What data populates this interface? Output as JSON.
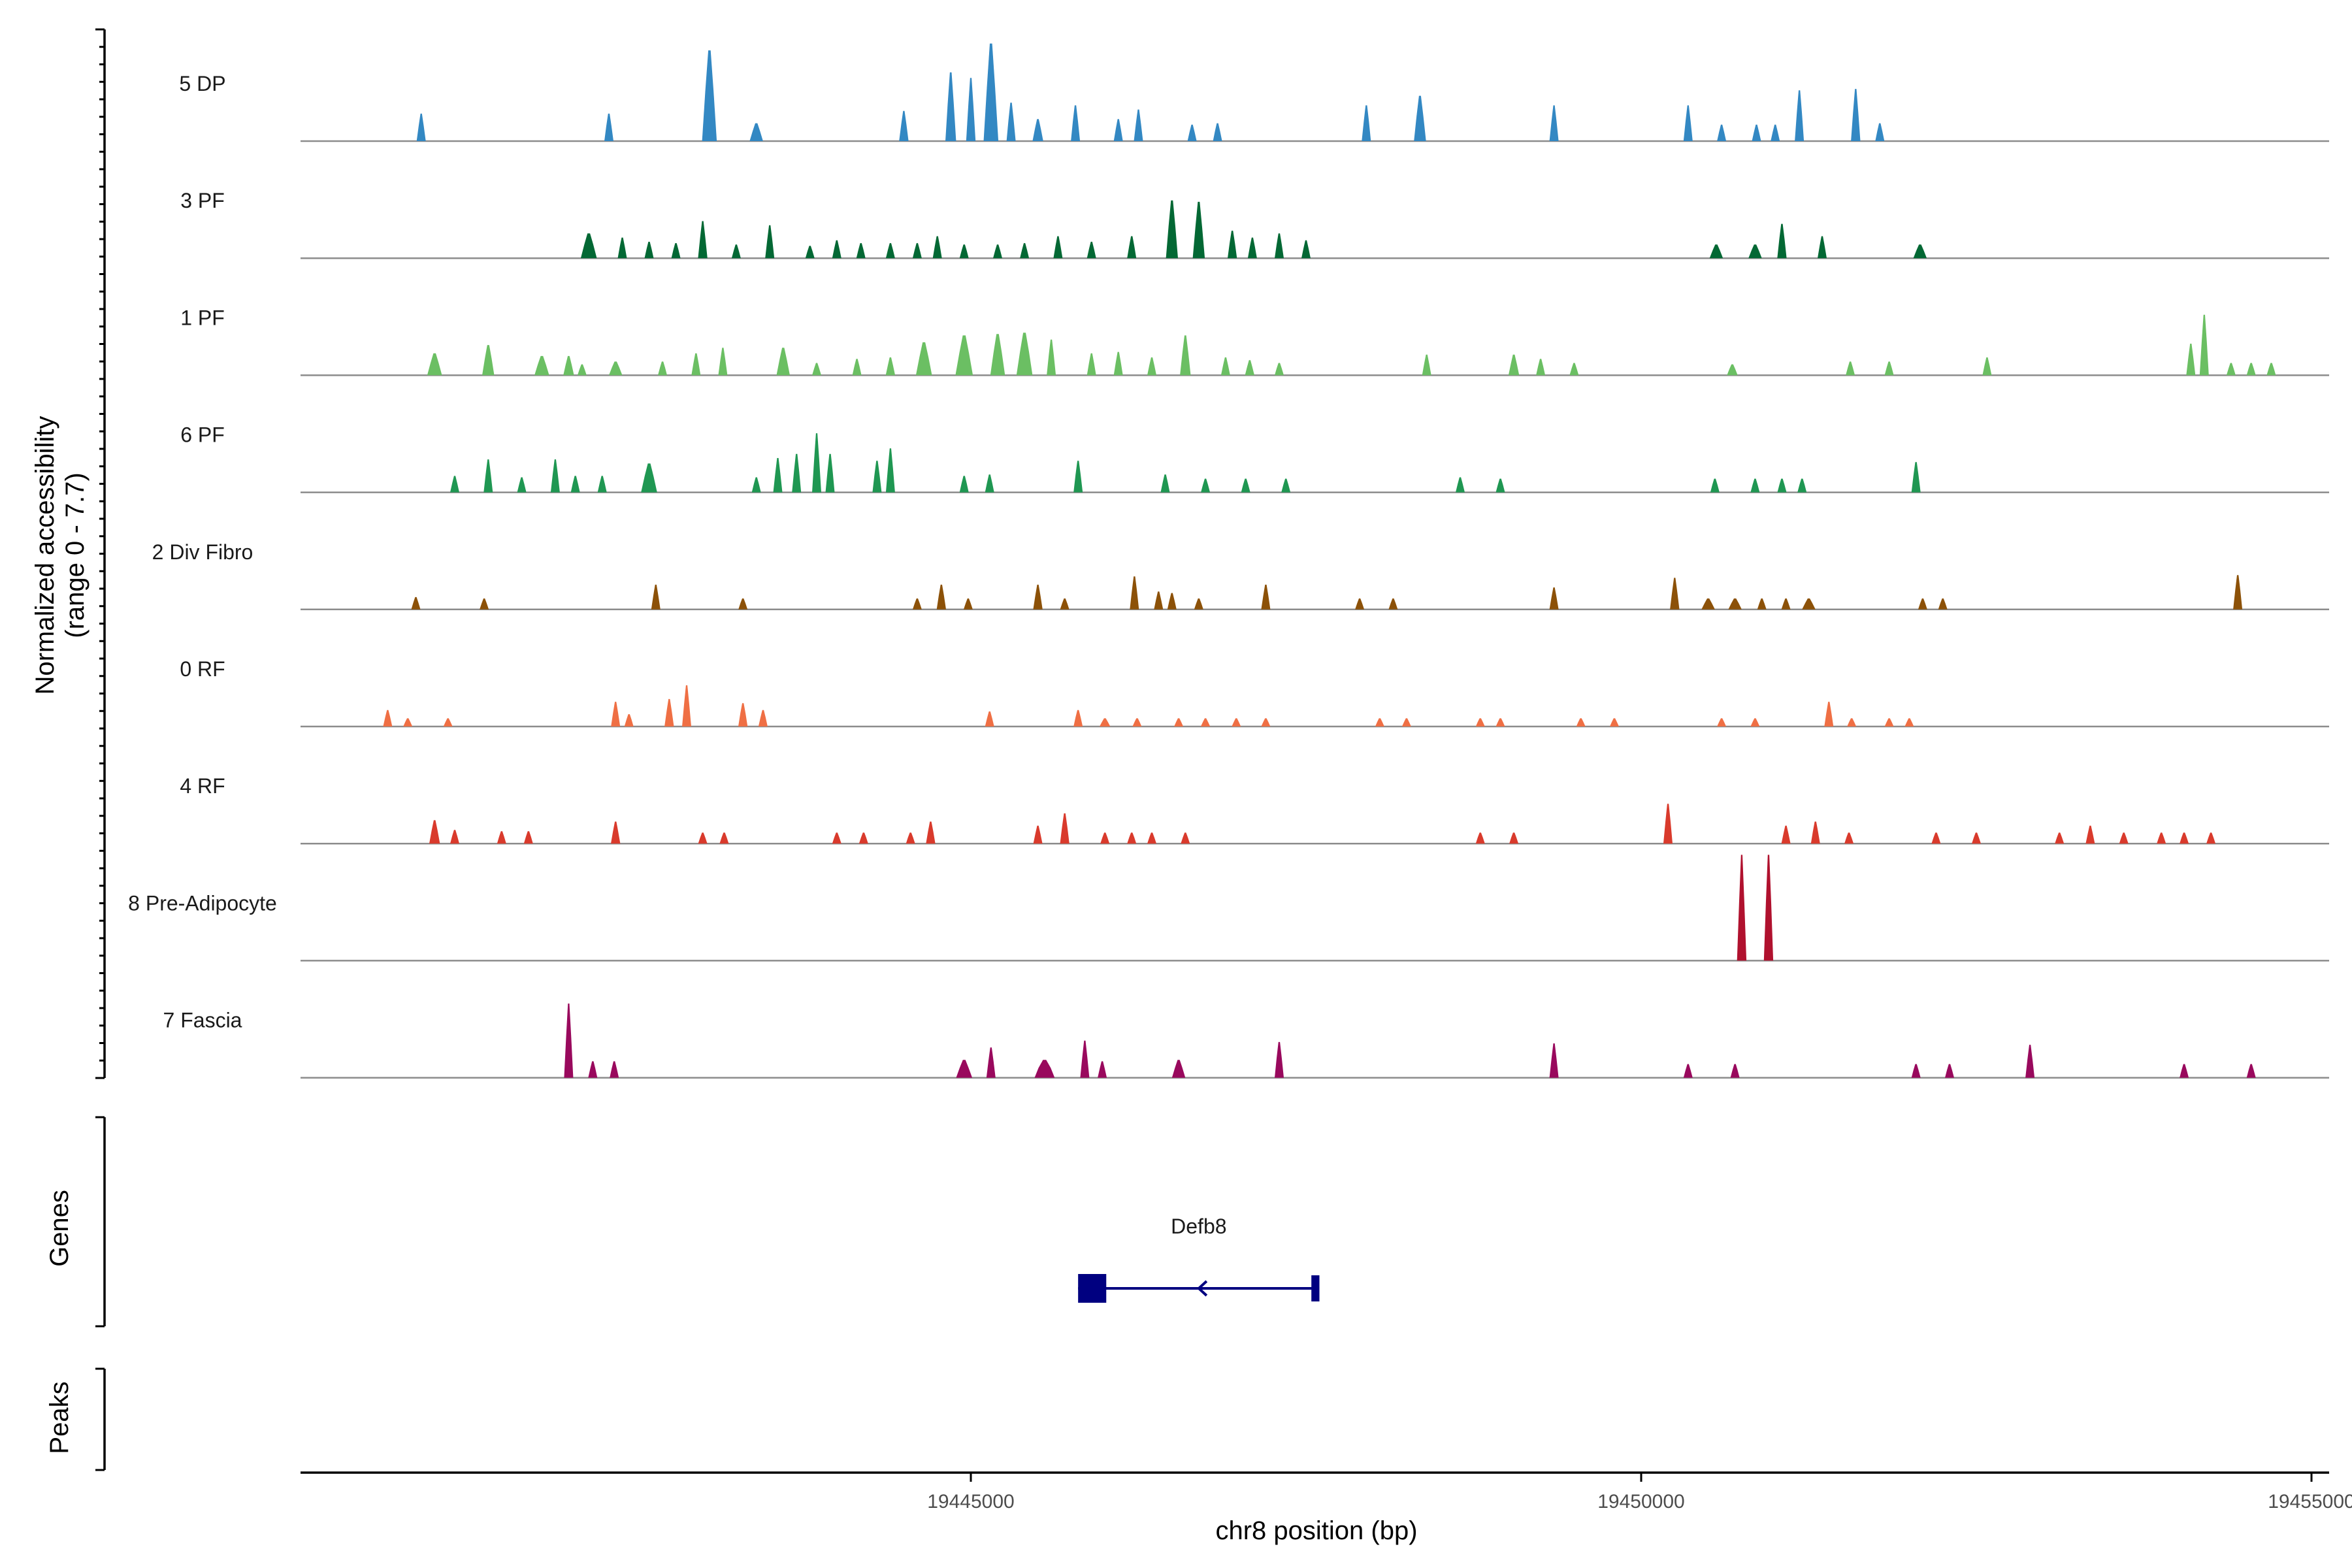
{
  "chart_data": {
    "type": "area",
    "title": "",
    "ylabel_line1": "Normalized accessibility",
    "ylabel_line2": "(range 0 - 7.7)",
    "y_range": [
      0,
      7.7
    ],
    "xlabel": "chr8 position (bp)",
    "x_range": [
      19440000,
      19455250
    ],
    "x_ticks": [
      {
        "value": 19445000,
        "label": "19445000"
      },
      {
        "value": 19450000,
        "label": "19450000"
      },
      {
        "value": 19455000,
        "label": "19455000"
      }
    ],
    "genes_label": "Genes",
    "peaks_label": "Peaks",
    "genes": [
      {
        "name": "Defb8",
        "start": 19445800,
        "end": 19447600,
        "strand": "-",
        "exons": [
          [
            19445800,
            19446010
          ],
          [
            19447540,
            19447600
          ]
        ]
      }
    ],
    "tracks": [
      {
        "name": "5 DP",
        "color": "#3388c3",
        "peaks": [
          [
            19440900,
            50,
            2.0
          ],
          [
            19442300,
            60,
            2.0
          ],
          [
            19443050,
            110,
            6.6
          ],
          [
            19443400,
            100,
            1.3
          ],
          [
            19444500,
            70,
            2.2
          ],
          [
            19444850,
            80,
            5.0
          ],
          [
            19445000,
            70,
            4.6
          ],
          [
            19445150,
            110,
            7.1
          ],
          [
            19445300,
            60,
            2.8
          ],
          [
            19445500,
            80,
            1.6
          ],
          [
            19445780,
            60,
            2.6
          ],
          [
            19446100,
            60,
            1.6
          ],
          [
            19446250,
            60,
            2.3
          ],
          [
            19446650,
            50,
            1.2
          ],
          [
            19446840,
            60,
            1.3
          ],
          [
            19447950,
            60,
            2.6
          ],
          [
            19448350,
            90,
            3.3
          ],
          [
            19449350,
            60,
            2.6
          ],
          [
            19450350,
            50,
            2.6
          ],
          [
            19450600,
            40,
            1.2
          ],
          [
            19450860,
            40,
            1.2
          ],
          [
            19451000,
            40,
            1.2
          ],
          [
            19451180,
            60,
            3.7
          ],
          [
            19451600,
            70,
            3.8
          ],
          [
            19451780,
            60,
            1.3
          ]
        ]
      },
      {
        "name": "3 PF",
        "color": "#036834",
        "peaks": [
          [
            19442150,
            120,
            1.8
          ],
          [
            19442400,
            40,
            1.5
          ],
          [
            19442600,
            40,
            1.2
          ],
          [
            19442800,
            50,
            1.1
          ],
          [
            19443000,
            70,
            2.7
          ],
          [
            19443250,
            50,
            1.0
          ],
          [
            19443500,
            50,
            2.4
          ],
          [
            19443800,
            40,
            0.9
          ],
          [
            19444000,
            50,
            1.3
          ],
          [
            19444180,
            40,
            1.1
          ],
          [
            19444400,
            40,
            1.1
          ],
          [
            19444600,
            40,
            1.1
          ],
          [
            19444750,
            50,
            1.6
          ],
          [
            19444950,
            40,
            1.0
          ],
          [
            19445200,
            40,
            1.0
          ],
          [
            19445400,
            50,
            1.1
          ],
          [
            19445650,
            60,
            1.6
          ],
          [
            19445900,
            40,
            1.2
          ],
          [
            19446200,
            60,
            1.6
          ],
          [
            19446500,
            90,
            4.2
          ],
          [
            19446700,
            90,
            4.1
          ],
          [
            19446950,
            70,
            2.0
          ],
          [
            19447100,
            60,
            1.5
          ],
          [
            19447300,
            60,
            1.8
          ],
          [
            19447500,
            40,
            1.3
          ],
          [
            19450560,
            100,
            1.0
          ],
          [
            19450850,
            100,
            1.0
          ],
          [
            19451050,
            70,
            2.5
          ],
          [
            19451350,
            50,
            1.6
          ],
          [
            19452080,
            100,
            1.0
          ]
        ]
      },
      {
        "name": "1 PF",
        "color": "#6bbf63",
        "peaks": [
          [
            19441000,
            110,
            1.6
          ],
          [
            19441400,
            90,
            2.2
          ],
          [
            19441800,
            110,
            1.4
          ],
          [
            19442000,
            80,
            1.4
          ],
          [
            19442100,
            40,
            0.8
          ],
          [
            19442350,
            100,
            1.0
          ],
          [
            19442700,
            40,
            1.0
          ],
          [
            19442950,
            50,
            1.6
          ],
          [
            19443150,
            60,
            2.0
          ],
          [
            19443600,
            100,
            2.0
          ],
          [
            19443850,
            40,
            0.9
          ],
          [
            19444150,
            50,
            1.2
          ],
          [
            19444400,
            70,
            1.3
          ],
          [
            19444650,
            120,
            2.4
          ],
          [
            19444950,
            130,
            2.9
          ],
          [
            19445200,
            110,
            3.0
          ],
          [
            19445400,
            120,
            3.1
          ],
          [
            19445600,
            50,
            2.6
          ],
          [
            19445900,
            60,
            1.6
          ],
          [
            19446100,
            60,
            1.7
          ],
          [
            19446350,
            50,
            1.3
          ],
          [
            19446600,
            80,
            2.9
          ],
          [
            19446900,
            60,
            1.3
          ],
          [
            19447080,
            70,
            1.1
          ],
          [
            19447300,
            40,
            0.9
          ],
          [
            19448400,
            60,
            1.5
          ],
          [
            19449050,
            80,
            1.5
          ],
          [
            19449250,
            60,
            1.2
          ],
          [
            19449500,
            40,
            0.9
          ],
          [
            19450680,
            80,
            0.8
          ],
          [
            19451560,
            50,
            1.0
          ],
          [
            19451850,
            50,
            1.0
          ],
          [
            19452580,
            60,
            1.3
          ],
          [
            19454100,
            60,
            2.3
          ],
          [
            19454200,
            60,
            4.4
          ],
          [
            19454400,
            60,
            0.9
          ],
          [
            19454550,
            40,
            0.9
          ],
          [
            19454700,
            40,
            0.9
          ]
        ]
      },
      {
        "name": "6 PF",
        "color": "#1f9752",
        "peaks": [
          [
            19441150,
            40,
            1.2
          ],
          [
            19441400,
            50,
            2.4
          ],
          [
            19441650,
            40,
            1.1
          ],
          [
            19441900,
            50,
            2.4
          ],
          [
            19442050,
            50,
            1.2
          ],
          [
            19442250,
            40,
            1.2
          ],
          [
            19442600,
            120,
            2.1
          ],
          [
            19443400,
            40,
            1.1
          ],
          [
            19443560,
            60,
            2.5
          ],
          [
            19443700,
            60,
            2.8
          ],
          [
            19443850,
            60,
            4.3
          ],
          [
            19443950,
            60,
            2.8
          ],
          [
            19444300,
            60,
            2.3
          ],
          [
            19444400,
            60,
            3.2
          ],
          [
            19444950,
            40,
            1.2
          ],
          [
            19445140,
            60,
            1.3
          ],
          [
            19445800,
            60,
            2.3
          ],
          [
            19446450,
            50,
            1.3
          ],
          [
            19446750,
            40,
            1.0
          ],
          [
            19447050,
            40,
            1.0
          ],
          [
            19447350,
            40,
            1.0
          ],
          [
            19448650,
            50,
            1.1
          ],
          [
            19448950,
            40,
            1.0
          ],
          [
            19450550,
            40,
            1.0
          ],
          [
            19450850,
            40,
            1.0
          ],
          [
            19451050,
            40,
            1.0
          ],
          [
            19451200,
            40,
            1.0
          ],
          [
            19452050,
            60,
            2.2
          ]
        ]
      },
      {
        "name": "2 Div Fibro",
        "color": "#8c5108",
        "peaks": [
          [
            19440860,
            50,
            0.9
          ],
          [
            19441370,
            40,
            0.8
          ],
          [
            19442650,
            60,
            1.8
          ],
          [
            19443300,
            40,
            0.8
          ],
          [
            19444600,
            40,
            0.8
          ],
          [
            19444780,
            70,
            1.8
          ],
          [
            19444980,
            40,
            0.8
          ],
          [
            19445500,
            70,
            1.8
          ],
          [
            19445700,
            40,
            0.8
          ],
          [
            19446220,
            60,
            2.4
          ],
          [
            19446400,
            60,
            1.3
          ],
          [
            19446500,
            60,
            1.2
          ],
          [
            19446700,
            40,
            0.8
          ],
          [
            19447200,
            60,
            1.8
          ],
          [
            19447900,
            40,
            0.8
          ],
          [
            19448150,
            40,
            0.8
          ],
          [
            19449350,
            50,
            1.6
          ],
          [
            19450250,
            70,
            2.3
          ],
          [
            19450500,
            100,
            0.8
          ],
          [
            19450700,
            100,
            0.8
          ],
          [
            19450900,
            40,
            0.8
          ],
          [
            19451080,
            40,
            0.8
          ],
          [
            19451250,
            100,
            0.8
          ],
          [
            19452100,
            40,
            0.8
          ],
          [
            19452250,
            40,
            0.8
          ],
          [
            19454450,
            50,
            2.5
          ]
        ]
      },
      {
        "name": "0 RF",
        "color": "#ef6f44",
        "peaks": [
          [
            19440650,
            50,
            1.2
          ],
          [
            19440800,
            40,
            0.6
          ],
          [
            19441100,
            40,
            0.6
          ],
          [
            19442350,
            60,
            1.8
          ],
          [
            19442450,
            40,
            0.9
          ],
          [
            19442750,
            70,
            2.0
          ],
          [
            19442880,
            60,
            3.0
          ],
          [
            19443300,
            70,
            1.7
          ],
          [
            19443450,
            50,
            1.2
          ],
          [
            19445140,
            50,
            1.1
          ],
          [
            19445800,
            60,
            1.2
          ],
          [
            19446000,
            80,
            0.6
          ],
          [
            19446240,
            40,
            0.6
          ],
          [
            19446550,
            40,
            0.6
          ],
          [
            19446750,
            70,
            0.6
          ],
          [
            19446980,
            40,
            0.6
          ],
          [
            19447200,
            50,
            0.6
          ],
          [
            19448050,
            50,
            0.6
          ],
          [
            19448250,
            40,
            0.6
          ],
          [
            19448800,
            40,
            0.6
          ],
          [
            19448950,
            40,
            0.6
          ],
          [
            19449550,
            60,
            0.6
          ],
          [
            19449800,
            40,
            0.6
          ],
          [
            19450600,
            40,
            0.6
          ],
          [
            19450850,
            40,
            0.6
          ],
          [
            19451400,
            60,
            1.8
          ],
          [
            19451570,
            40,
            0.6
          ],
          [
            19451850,
            40,
            0.6
          ],
          [
            19452000,
            40,
            0.6
          ]
        ]
      },
      {
        "name": "4 RF",
        "color": "#d93a2c",
        "peaks": [
          [
            19441000,
            80,
            1.7
          ],
          [
            19441150,
            60,
            1.0
          ],
          [
            19441500,
            50,
            0.9
          ],
          [
            19441700,
            60,
            0.9
          ],
          [
            19442350,
            70,
            1.6
          ],
          [
            19443000,
            40,
            0.8
          ],
          [
            19443160,
            40,
            0.8
          ],
          [
            19444000,
            40,
            0.8
          ],
          [
            19444200,
            40,
            0.8
          ],
          [
            19444550,
            40,
            0.8
          ],
          [
            19444700,
            70,
            1.6
          ],
          [
            19445500,
            60,
            1.3
          ],
          [
            19445700,
            70,
            2.2
          ],
          [
            19446000,
            40,
            0.8
          ],
          [
            19446200,
            40,
            0.8
          ],
          [
            19446350,
            40,
            0.8
          ],
          [
            19446600,
            40,
            0.8
          ],
          [
            19448800,
            60,
            0.8
          ],
          [
            19449050,
            40,
            0.8
          ],
          [
            19450200,
            60,
            2.9
          ],
          [
            19451080,
            60,
            1.3
          ],
          [
            19451300,
            60,
            1.6
          ],
          [
            19451550,
            40,
            0.8
          ],
          [
            19452200,
            40,
            0.8
          ],
          [
            19452500,
            40,
            0.8
          ],
          [
            19453120,
            40,
            0.8
          ],
          [
            19453350,
            60,
            1.3
          ],
          [
            19453600,
            40,
            0.8
          ],
          [
            19453880,
            60,
            0.8
          ],
          [
            19454050,
            40,
            0.8
          ],
          [
            19454250,
            40,
            0.8
          ]
        ]
      },
      {
        "name": "8 Pre-Adipocyte",
        "color": "#b0112e",
        "peaks": [
          [
            19450750,
            70,
            7.7
          ],
          [
            19450950,
            70,
            7.7
          ]
        ]
      },
      {
        "name": "7 Fascia",
        "color": "#99095d",
        "peaks": [
          [
            19442000,
            60,
            5.4
          ],
          [
            19442180,
            40,
            1.2
          ],
          [
            19442340,
            40,
            1.2
          ],
          [
            19444950,
            120,
            1.3
          ],
          [
            19445150,
            60,
            2.2
          ],
          [
            19445550,
            150,
            1.3
          ],
          [
            19445850,
            60,
            2.7
          ],
          [
            19445980,
            40,
            1.2
          ],
          [
            19446550,
            100,
            1.3
          ],
          [
            19447300,
            60,
            2.6
          ],
          [
            19449350,
            50,
            2.5
          ],
          [
            19450350,
            40,
            1.0
          ],
          [
            19450700,
            40,
            1.0
          ],
          [
            19452050,
            40,
            1.0
          ],
          [
            19452300,
            40,
            1.0
          ],
          [
            19452900,
            60,
            2.4
          ],
          [
            19454050,
            40,
            1.0
          ],
          [
            19454550,
            40,
            1.0
          ]
        ]
      }
    ]
  }
}
